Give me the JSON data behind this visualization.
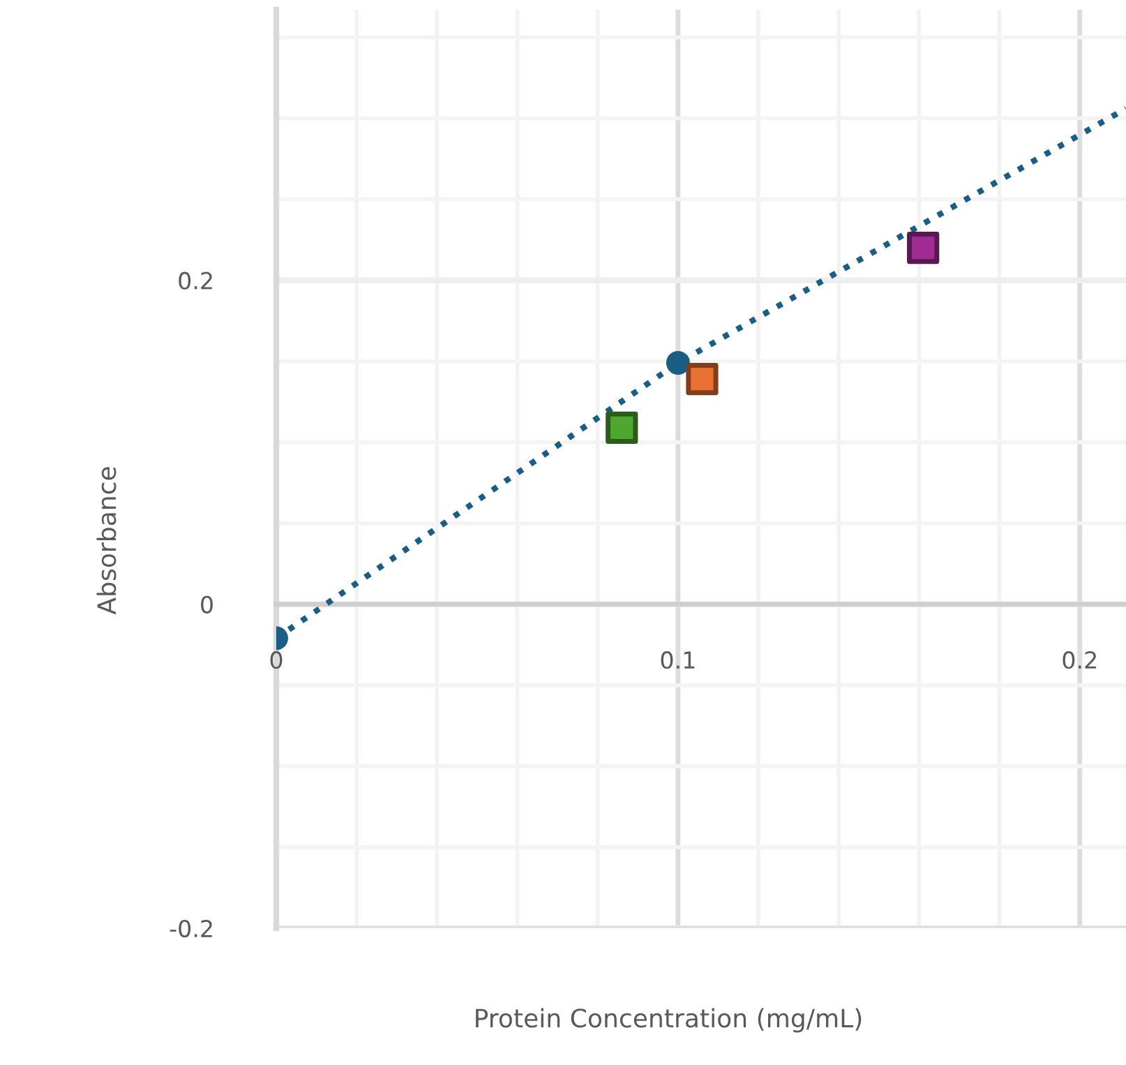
{
  "chart_data": {
    "type": "scatter",
    "xlabel": "Protein Concentration (mg/mL)",
    "ylabel": "Absorbance",
    "xlim": [
      0,
      0.2115
    ],
    "ylim": [
      -0.2,
      0.367
    ],
    "xticks": [
      0,
      {
        "value": 0.02,
        "label": null
      },
      {
        "value": 0.04,
        "label": null
      },
      {
        "value": 0.06,
        "label": null
      },
      {
        "value": 0.08,
        "label": null
      },
      0.1,
      {
        "value": 0.12,
        "label": null
      },
      {
        "value": 0.14,
        "label": null
      },
      {
        "value": 0.16,
        "label": null
      },
      {
        "value": 0.18,
        "label": null
      },
      0.2
    ],
    "yticks": [
      -0.2,
      {
        "value": -0.15,
        "label": null
      },
      {
        "value": -0.1,
        "label": null
      },
      {
        "value": -0.05,
        "label": null
      },
      0,
      {
        "value": 0.05,
        "label": null
      },
      {
        "value": 0.1,
        "label": null
      },
      {
        "value": 0.15,
        "label": null
      },
      0.2,
      {
        "value": 0.25,
        "label": null
      },
      {
        "value": 0.3,
        "label": null
      },
      {
        "value": 0.35,
        "label": null
      }
    ],
    "grid": true,
    "series": [
      {
        "type": "line",
        "color": "#1a5e86",
        "x": [
          0,
          0.1,
          0.2115
        ],
        "values": [
          -0.021,
          0.149,
          0.306
        ],
        "line_style": "dotted",
        "marker": "none"
      },
      {
        "color": "#1a5e86",
        "x": [
          0,
          0.1
        ],
        "values": [
          -0.021,
          0.149
        ],
        "marker": "circle"
      },
      {
        "color": "#4ea72e",
        "x": [
          0.086
        ],
        "values": [
          0.109
        ],
        "marker": "square"
      },
      {
        "color": "#e97132",
        "x": [
          0.106
        ],
        "values": [
          0.139
        ],
        "marker": "square"
      },
      {
        "color": "#a02b93",
        "x": [
          0.161
        ],
        "values": [
          0.22
        ],
        "marker": "square"
      }
    ]
  }
}
